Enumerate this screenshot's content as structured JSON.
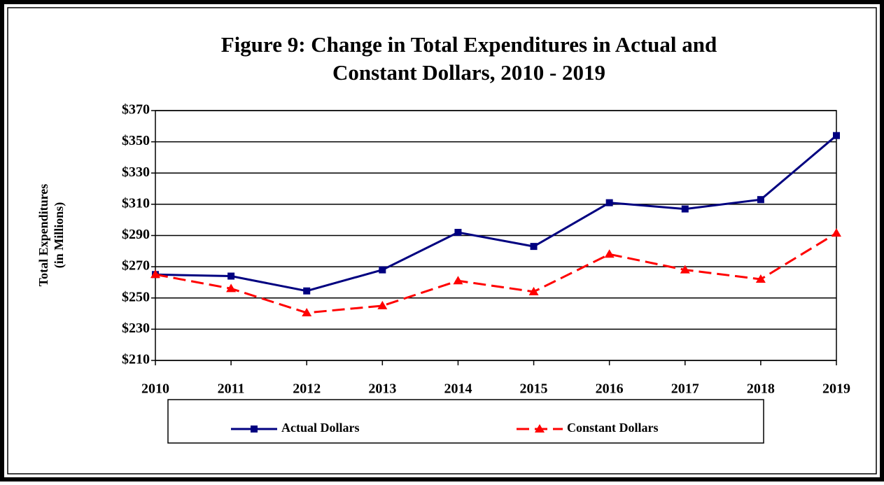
{
  "chart_data": {
    "type": "line",
    "title": [
      "Figure 9:  Change in Total Expenditures in Actual and",
      "Constant Dollars, 2010 - 2019"
    ],
    "ylabel": [
      "Total Expenditures",
      "(in Millions)"
    ],
    "categories": [
      "2010",
      "2011",
      "2012",
      "2013",
      "2014",
      "2015",
      "2016",
      "2017",
      "2018",
      "2019"
    ],
    "series": [
      {
        "name": "Actual Dollars",
        "color": "#000080",
        "values": [
          265,
          264,
          254.5,
          268,
          292,
          283,
          311,
          307,
          313,
          354
        ]
      },
      {
        "name": "Constant Dollars",
        "color": "#ff0000",
        "values": [
          265,
          256,
          240.5,
          245,
          261,
          254,
          278,
          268,
          262,
          291.5
        ]
      }
    ],
    "ylim": [
      210,
      370
    ],
    "yticks": [
      {
        "value": 210,
        "label": "$210"
      },
      {
        "value": 230,
        "label": "$230"
      },
      {
        "value": 250,
        "label": "$250"
      },
      {
        "value": 270,
        "label": "$270"
      },
      {
        "value": 290,
        "label": "$290"
      },
      {
        "value": 310,
        "label": "$310"
      },
      {
        "value": 330,
        "label": "$330"
      },
      {
        "value": 350,
        "label": "$350"
      },
      {
        "value": 370,
        "label": "$370"
      }
    ],
    "grid": true,
    "legend": "bottom"
  }
}
